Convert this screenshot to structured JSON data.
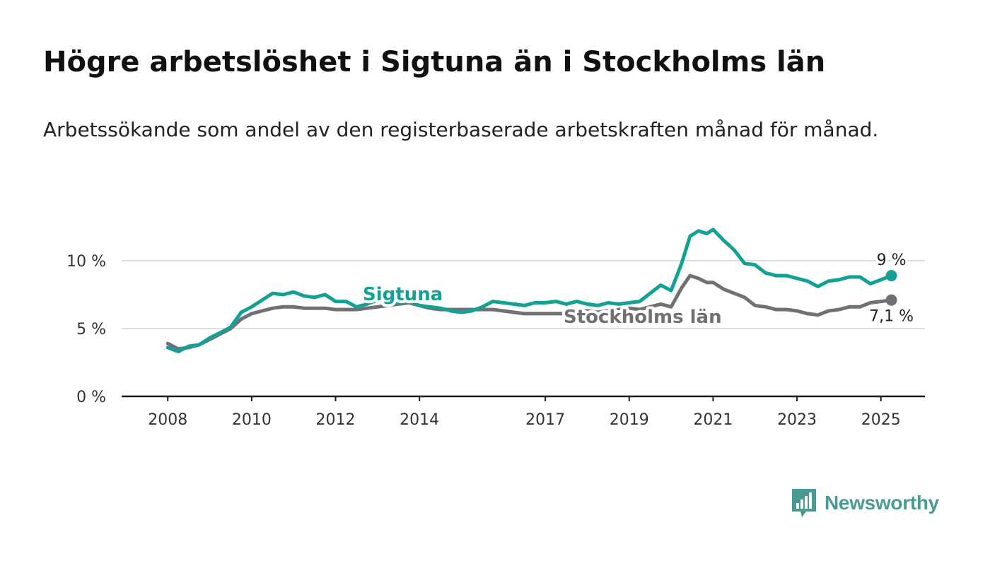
{
  "header": {
    "title": "Högre arbetslöshet i Sigtuna än i Stockholms län",
    "subtitle": "Arbetssökande som andel av den registerbaserade arbetskraften månad för månad."
  },
  "logo": {
    "text": "Newsworthy",
    "icon": "bar-chart-speech-bubble-icon",
    "color": "#4a9a94"
  },
  "chart_data": {
    "type": "line",
    "title": "",
    "xlabel": "",
    "ylabel": "",
    "x_ticks": [
      "2008",
      "2010",
      "2012",
      "2014",
      "2017",
      "2019",
      "2021",
      "2023",
      "2025"
    ],
    "y_ticks": [
      "0 %",
      "5 %",
      "10 %"
    ],
    "ylim": [
      0,
      10
    ],
    "xlim": [
      2006.9,
      2026.05
    ],
    "grid": true,
    "series": [
      {
        "name": "Sigtuna",
        "color": "#14a195",
        "end_label": "9 %",
        "points": [
          [
            2008.0,
            3.6
          ],
          [
            2008.25,
            3.3
          ],
          [
            2008.5,
            3.7
          ],
          [
            2008.75,
            3.8
          ],
          [
            2009.0,
            4.3
          ],
          [
            2009.25,
            4.7
          ],
          [
            2009.5,
            5.1
          ],
          [
            2009.75,
            6.2
          ],
          [
            2010.0,
            6.6
          ],
          [
            2010.25,
            7.1
          ],
          [
            2010.5,
            7.6
          ],
          [
            2010.75,
            7.5
          ],
          [
            2011.0,
            7.7
          ],
          [
            2011.25,
            7.4
          ],
          [
            2011.5,
            7.3
          ],
          [
            2011.75,
            7.5
          ],
          [
            2012.0,
            7.0
          ],
          [
            2012.25,
            7.0
          ],
          [
            2012.5,
            6.6
          ],
          [
            2012.75,
            6.8
          ],
          [
            2013.0,
            7.1
          ],
          [
            2013.25,
            7.0
          ],
          [
            2013.5,
            6.9
          ],
          [
            2013.75,
            7.0
          ],
          [
            2014.0,
            6.7
          ],
          [
            2014.25,
            6.6
          ],
          [
            2014.5,
            6.5
          ],
          [
            2014.75,
            6.3
          ],
          [
            2015.0,
            6.2
          ],
          [
            2015.25,
            6.3
          ],
          [
            2015.5,
            6.6
          ],
          [
            2015.75,
            7.0
          ],
          [
            2016.0,
            6.9
          ],
          [
            2016.25,
            6.8
          ],
          [
            2016.5,
            6.7
          ],
          [
            2016.75,
            6.9
          ],
          [
            2017.0,
            6.9
          ],
          [
            2017.25,
            7.0
          ],
          [
            2017.5,
            6.8
          ],
          [
            2017.75,
            7.0
          ],
          [
            2018.0,
            6.8
          ],
          [
            2018.25,
            6.7
          ],
          [
            2018.5,
            6.9
          ],
          [
            2018.75,
            6.8
          ],
          [
            2019.0,
            6.9
          ],
          [
            2019.25,
            7.0
          ],
          [
            2019.5,
            7.6
          ],
          [
            2019.75,
            8.2
          ],
          [
            2020.0,
            7.8
          ],
          [
            2020.25,
            9.8
          ],
          [
            2020.45,
            11.8
          ],
          [
            2020.65,
            12.2
          ],
          [
            2020.85,
            12.0
          ],
          [
            2021.0,
            12.3
          ],
          [
            2021.25,
            11.5
          ],
          [
            2021.5,
            10.8
          ],
          [
            2021.75,
            9.8
          ],
          [
            2022.0,
            9.7
          ],
          [
            2022.25,
            9.1
          ],
          [
            2022.5,
            8.9
          ],
          [
            2022.75,
            8.9
          ],
          [
            2023.0,
            8.7
          ],
          [
            2023.25,
            8.5
          ],
          [
            2023.5,
            8.1
          ],
          [
            2023.75,
            8.5
          ],
          [
            2024.0,
            8.6
          ],
          [
            2024.25,
            8.8
          ],
          [
            2024.5,
            8.8
          ],
          [
            2024.75,
            8.3
          ],
          [
            2025.0,
            8.6
          ],
          [
            2025.25,
            8.9
          ]
        ]
      },
      {
        "name": "Stockholms län",
        "color": "#737075",
        "end_label": "7,1 %",
        "points": [
          [
            2008.0,
            3.9
          ],
          [
            2008.25,
            3.5
          ],
          [
            2008.5,
            3.6
          ],
          [
            2008.75,
            3.8
          ],
          [
            2009.0,
            4.2
          ],
          [
            2009.25,
            4.6
          ],
          [
            2009.5,
            5.0
          ],
          [
            2009.75,
            5.7
          ],
          [
            2010.0,
            6.1
          ],
          [
            2010.25,
            6.3
          ],
          [
            2010.5,
            6.5
          ],
          [
            2010.75,
            6.6
          ],
          [
            2011.0,
            6.6
          ],
          [
            2011.25,
            6.5
          ],
          [
            2011.5,
            6.5
          ],
          [
            2011.75,
            6.5
          ],
          [
            2012.0,
            6.4
          ],
          [
            2012.25,
            6.4
          ],
          [
            2012.5,
            6.4
          ],
          [
            2012.75,
            6.5
          ],
          [
            2013.0,
            6.6
          ],
          [
            2013.25,
            6.7
          ],
          [
            2013.5,
            6.8
          ],
          [
            2013.75,
            6.9
          ],
          [
            2014.0,
            6.7
          ],
          [
            2014.25,
            6.5
          ],
          [
            2014.5,
            6.4
          ],
          [
            2014.75,
            6.4
          ],
          [
            2015.0,
            6.4
          ],
          [
            2015.25,
            6.4
          ],
          [
            2015.5,
            6.4
          ],
          [
            2015.75,
            6.4
          ],
          [
            2016.0,
            6.3
          ],
          [
            2016.25,
            6.2
          ],
          [
            2016.5,
            6.1
          ],
          [
            2016.75,
            6.1
          ],
          [
            2017.0,
            6.1
          ],
          [
            2017.25,
            6.1
          ],
          [
            2017.5,
            6.1
          ],
          [
            2017.75,
            6.2
          ],
          [
            2018.0,
            6.3
          ],
          [
            2018.25,
            6.2
          ],
          [
            2018.5,
            6.3
          ],
          [
            2018.75,
            6.4
          ],
          [
            2019.0,
            6.5
          ],
          [
            2019.25,
            6.4
          ],
          [
            2019.5,
            6.6
          ],
          [
            2019.75,
            6.8
          ],
          [
            2020.0,
            6.6
          ],
          [
            2020.25,
            8.0
          ],
          [
            2020.45,
            8.9
          ],
          [
            2020.65,
            8.7
          ],
          [
            2020.85,
            8.4
          ],
          [
            2021.0,
            8.4
          ],
          [
            2021.25,
            7.9
          ],
          [
            2021.5,
            7.6
          ],
          [
            2021.75,
            7.3
          ],
          [
            2022.0,
            6.7
          ],
          [
            2022.25,
            6.6
          ],
          [
            2022.5,
            6.4
          ],
          [
            2022.75,
            6.4
          ],
          [
            2023.0,
            6.3
          ],
          [
            2023.25,
            6.1
          ],
          [
            2023.5,
            6.0
          ],
          [
            2023.75,
            6.3
          ],
          [
            2024.0,
            6.4
          ],
          [
            2024.25,
            6.6
          ],
          [
            2024.5,
            6.6
          ],
          [
            2024.75,
            6.9
          ],
          [
            2025.0,
            7.0
          ],
          [
            2025.25,
            7.1
          ]
        ]
      }
    ]
  }
}
